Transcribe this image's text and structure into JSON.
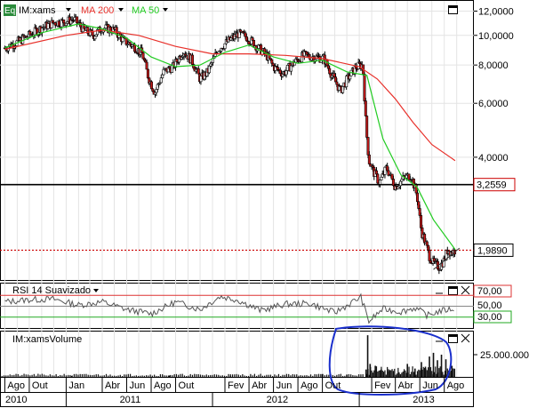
{
  "legend": {
    "badge": "Eq",
    "symbol": "IM:xams",
    "ma200_label": "MA 200",
    "ma50_label": "MA 50",
    "colors": {
      "ma200": "#e8302a",
      "ma50": "#22cc22",
      "badge_bg": "#2a8a3a"
    }
  },
  "rsi": {
    "label": "RSI 14 Suavizado",
    "levels": [
      "70,00",
      "50,00",
      "30,00"
    ]
  },
  "volume": {
    "label": "IM:xamsVolume",
    "tick": "25.000.000"
  },
  "annotations": {
    "support_line_label": "3,2559",
    "last_price_label": "1,9890",
    "highlight_circle_color": "#1a2fcc"
  },
  "chart_data": {
    "type": "candlestick",
    "price_axis": {
      "scale": "log",
      "ticks": [
        "12,0000",
        "10,0000",
        "8,0000",
        "6,0000",
        "4,0000",
        "1,9890"
      ]
    },
    "months": [
      "Ago",
      "Out",
      "Jan",
      "Abr",
      "Jun",
      "Ago",
      "Out",
      "Fev",
      "Abr",
      "Jun",
      "Ago",
      "Out",
      "Fev",
      "Abr",
      "Jun",
      "Ago"
    ],
    "years": [
      "2010",
      "2011",
      "2012",
      "2013"
    ],
    "price_series": [
      {
        "d": "2010-08-01",
        "p": 9.1
      },
      {
        "d": "2010-09-01",
        "p": 9.5
      },
      {
        "d": "2010-10-01",
        "p": 10.0
      },
      {
        "d": "2010-11-01",
        "p": 10.6
      },
      {
        "d": "2010-12-01",
        "p": 11.0
      },
      {
        "d": "2011-01-01",
        "p": 11.1
      },
      {
        "d": "2011-01-20",
        "p": 11.3
      },
      {
        "d": "2011-02-15",
        "p": 10.4
      },
      {
        "d": "2011-03-10",
        "p": 10.0
      },
      {
        "d": "2011-04-01",
        "p": 10.6
      },
      {
        "d": "2011-05-01",
        "p": 10.4
      },
      {
        "d": "2011-05-25",
        "p": 9.6
      },
      {
        "d": "2011-06-20",
        "p": 9.2
      },
      {
        "d": "2011-07-10",
        "p": 8.7
      },
      {
        "d": "2011-07-25",
        "p": 7.3
      },
      {
        "d": "2011-08-10",
        "p": 6.5
      },
      {
        "d": "2011-09-01",
        "p": 7.6
      },
      {
        "d": "2011-09-25",
        "p": 7.9
      },
      {
        "d": "2011-10-20",
        "p": 8.9
      },
      {
        "d": "2011-11-10",
        "p": 8.3
      },
      {
        "d": "2011-12-01",
        "p": 7.2
      },
      {
        "d": "2011-12-20",
        "p": 7.6
      },
      {
        "d": "2012-01-15",
        "p": 9.0
      },
      {
        "d": "2012-02-10",
        "p": 9.6
      },
      {
        "d": "2012-03-05",
        "p": 10.1
      },
      {
        "d": "2012-03-25",
        "p": 9.9
      },
      {
        "d": "2012-04-20",
        "p": 9.2
      },
      {
        "d": "2012-05-15",
        "p": 8.6
      },
      {
        "d": "2012-06-01",
        "p": 7.9
      },
      {
        "d": "2012-06-25",
        "p": 7.5
      },
      {
        "d": "2012-07-20",
        "p": 8.1
      },
      {
        "d": "2012-08-15",
        "p": 8.6
      },
      {
        "d": "2012-09-10",
        "p": 8.5
      },
      {
        "d": "2012-10-05",
        "p": 8.4
      },
      {
        "d": "2012-10-25",
        "p": 7.4
      },
      {
        "d": "2012-11-15",
        "p": 6.6
      },
      {
        "d": "2012-12-05",
        "p": 7.3
      },
      {
        "d": "2012-12-25",
        "p": 7.9
      },
      {
        "d": "2013-01-10",
        "p": 8.0
      },
      {
        "d": "2013-01-18",
        "p": 5.0
      },
      {
        "d": "2013-01-25",
        "p": 3.9
      },
      {
        "d": "2013-02-05",
        "p": 3.6
      },
      {
        "d": "2013-02-20",
        "p": 3.3
      },
      {
        "d": "2013-03-10",
        "p": 3.7
      },
      {
        "d": "2013-04-01",
        "p": 3.2
      },
      {
        "d": "2013-04-20",
        "p": 3.4
      },
      {
        "d": "2013-05-10",
        "p": 3.5
      },
      {
        "d": "2013-05-25",
        "p": 3.0
      },
      {
        "d": "2013-06-05",
        "p": 2.3
      },
      {
        "d": "2013-06-15",
        "p": 2.1
      },
      {
        "d": "2013-06-25",
        "p": 1.9
      },
      {
        "d": "2013-07-05",
        "p": 1.8
      },
      {
        "d": "2013-07-20",
        "p": 1.75
      },
      {
        "d": "2013-08-01",
        "p": 1.85
      },
      {
        "d": "2013-08-10",
        "p": 2.0
      },
      {
        "d": "2013-08-20",
        "p": 1.95
      },
      {
        "d": "2013-08-28",
        "p": 1.99
      }
    ],
    "ma200_series": [
      {
        "d": "2010-08-01",
        "p": 9.0
      },
      {
        "d": "2011-01-01",
        "p": 10.0
      },
      {
        "d": "2011-04-01",
        "p": 10.4
      },
      {
        "d": "2011-07-01",
        "p": 10.0
      },
      {
        "d": "2011-10-01",
        "p": 9.2
      },
      {
        "d": "2012-01-01",
        "p": 8.7
      },
      {
        "d": "2012-04-01",
        "p": 8.7
      },
      {
        "d": "2012-07-01",
        "p": 8.6
      },
      {
        "d": "2012-10-01",
        "p": 8.4
      },
      {
        "d": "2013-01-01",
        "p": 7.9
      },
      {
        "d": "2013-02-15",
        "p": 7.2
      },
      {
        "d": "2013-04-01",
        "p": 6.2
      },
      {
        "d": "2013-05-15",
        "p": 5.2
      },
      {
        "d": "2013-07-01",
        "p": 4.4
      },
      {
        "d": "2013-08-28",
        "p": 3.9
      }
    ],
    "ma50_series": [
      {
        "d": "2010-08-01",
        "p": 9.1
      },
      {
        "d": "2010-11-01",
        "p": 10.2
      },
      {
        "d": "2011-02-01",
        "p": 10.9
      },
      {
        "d": "2011-04-01",
        "p": 10.5
      },
      {
        "d": "2011-06-01",
        "p": 9.8
      },
      {
        "d": "2011-08-01",
        "p": 8.5
      },
      {
        "d": "2011-10-01",
        "p": 7.9
      },
      {
        "d": "2011-12-01",
        "p": 8.0
      },
      {
        "d": "2012-02-01",
        "p": 8.8
      },
      {
        "d": "2012-04-01",
        "p": 9.3
      },
      {
        "d": "2012-06-01",
        "p": 8.5
      },
      {
        "d": "2012-08-01",
        "p": 8.1
      },
      {
        "d": "2012-10-01",
        "p": 8.3
      },
      {
        "d": "2012-12-01",
        "p": 7.6
      },
      {
        "d": "2013-01-20",
        "p": 7.4
      },
      {
        "d": "2013-03-01",
        "p": 4.6
      },
      {
        "d": "2013-04-15",
        "p": 3.5
      },
      {
        "d": "2013-05-25",
        "p": 3.2
      },
      {
        "d": "2013-07-05",
        "p": 2.5
      },
      {
        "d": "2013-08-28",
        "p": 2.0
      }
    ],
    "support_level": 3.2559,
    "last_price": 1.989,
    "rsi_levels": [
      70,
      50,
      30
    ],
    "rsi_series": [
      {
        "d": "2010-08-01",
        "v": 58
      },
      {
        "d": "2010-10-01",
        "v": 62
      },
      {
        "d": "2010-12-01",
        "v": 63
      },
      {
        "d": "2011-02-01",
        "v": 52
      },
      {
        "d": "2011-04-01",
        "v": 58
      },
      {
        "d": "2011-06-01",
        "v": 44
      },
      {
        "d": "2011-08-01",
        "v": 36
      },
      {
        "d": "2011-10-01",
        "v": 58
      },
      {
        "d": "2011-12-01",
        "v": 44
      },
      {
        "d": "2012-01-20",
        "v": 68
      },
      {
        "d": "2012-03-01",
        "v": 62
      },
      {
        "d": "2012-05-01",
        "v": 42
      },
      {
        "d": "2012-07-01",
        "v": 54
      },
      {
        "d": "2012-09-01",
        "v": 55
      },
      {
        "d": "2012-11-01",
        "v": 38
      },
      {
        "d": "2013-01-05",
        "v": 67
      },
      {
        "d": "2013-01-25",
        "v": 22
      },
      {
        "d": "2013-03-01",
        "v": 45
      },
      {
        "d": "2013-04-15",
        "v": 40
      },
      {
        "d": "2013-05-20",
        "v": 47
      },
      {
        "d": "2013-06-20",
        "v": 33
      },
      {
        "d": "2013-07-20",
        "v": 41
      },
      {
        "d": "2013-08-28",
        "v": 46
      }
    ],
    "volume_series": [
      {
        "d": "2011-01-15",
        "v": 1000000
      },
      {
        "d": "2011-09-15",
        "v": 1500000
      },
      {
        "d": "2012-02-15",
        "v": 1200000
      },
      {
        "d": "2012-10-01",
        "v": 3000000
      },
      {
        "d": "2012-12-01",
        "v": 2500000
      },
      {
        "d": "2013-01-18",
        "v": 8000000
      },
      {
        "d": "2013-01-22",
        "v": 45000000
      },
      {
        "d": "2013-01-28",
        "v": 14000000
      },
      {
        "d": "2013-02-10",
        "v": 12000000
      },
      {
        "d": "2013-02-25",
        "v": 8000000
      },
      {
        "d": "2013-03-15",
        "v": 6000000
      },
      {
        "d": "2013-04-10",
        "v": 5000000
      },
      {
        "d": "2013-05-01",
        "v": 14000000
      },
      {
        "d": "2013-05-20",
        "v": 9000000
      },
      {
        "d": "2013-06-05",
        "v": 16000000
      },
      {
        "d": "2013-06-15",
        "v": 11000000
      },
      {
        "d": "2013-06-25",
        "v": 22000000
      },
      {
        "d": "2013-07-05",
        "v": 26000000
      },
      {
        "d": "2013-07-15",
        "v": 18000000
      },
      {
        "d": "2013-07-25",
        "v": 24000000
      },
      {
        "d": "2013-08-05",
        "v": 19000000
      },
      {
        "d": "2013-08-20",
        "v": 12000000
      }
    ]
  }
}
